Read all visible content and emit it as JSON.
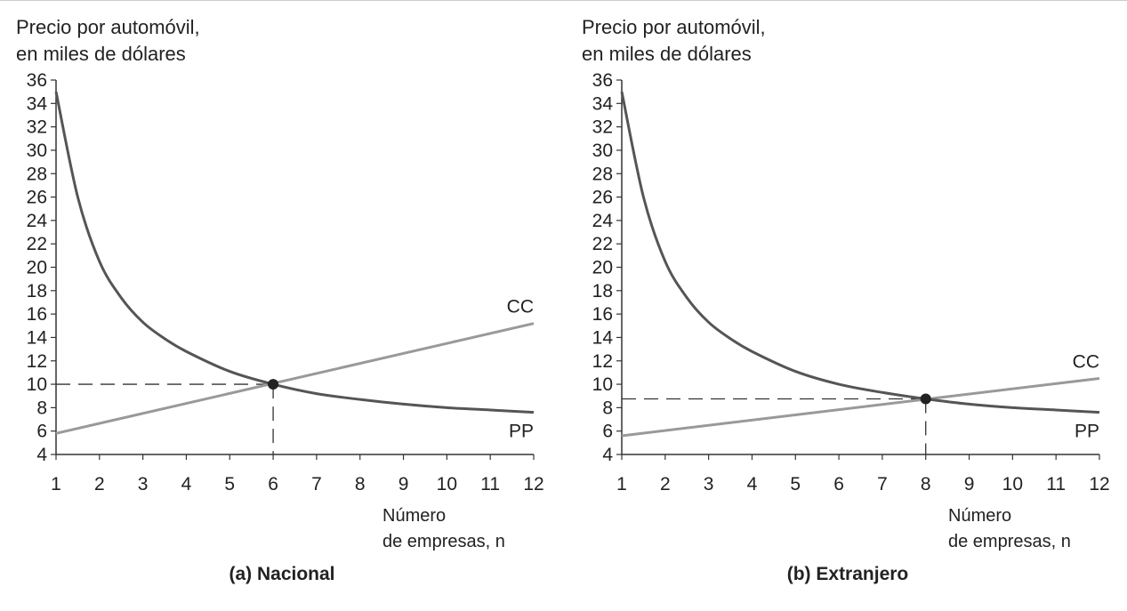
{
  "chart_data": [
    {
      "type": "line",
      "caption": "(a) Nacional",
      "ylabel_line1": "Precio por automóvil,",
      "ylabel_line2": "en miles de dólares",
      "xlabel_line1": "Número",
      "xlabel_line2": "de empresas, n",
      "xlim": [
        1,
        12
      ],
      "ylim": [
        4,
        36
      ],
      "x_ticks": [
        1,
        2,
        3,
        4,
        5,
        6,
        7,
        8,
        9,
        10,
        11,
        12
      ],
      "y_ticks": [
        4,
        6,
        8,
        10,
        12,
        14,
        16,
        18,
        20,
        22,
        24,
        26,
        28,
        30,
        32,
        34,
        36
      ],
      "series": [
        {
          "name": "CC",
          "color": "#999999",
          "x": [
            1,
            12
          ],
          "y": [
            5.8,
            15.2
          ]
        },
        {
          "name": "PP",
          "color": "#555555",
          "x": [
            1,
            1.5,
            2,
            2.5,
            3,
            3.5,
            4,
            5,
            6,
            7,
            8,
            9,
            10,
            11,
            12
          ],
          "y": [
            35,
            26,
            20.5,
            17.4,
            15.3,
            13.9,
            12.8,
            11.1,
            10,
            9.2,
            8.7,
            8.3,
            8.0,
            7.8,
            7.6
          ]
        }
      ],
      "equilibrium": {
        "x": 6,
        "y": 10
      }
    },
    {
      "type": "line",
      "caption": "(b) Extranjero",
      "ylabel_line1": "Precio por automóvil,",
      "ylabel_line2": "en miles de dólares",
      "xlabel_line1": "Número",
      "xlabel_line2": "de empresas, n",
      "xlim": [
        1,
        12
      ],
      "ylim": [
        4,
        36
      ],
      "x_ticks": [
        1,
        2,
        3,
        4,
        5,
        6,
        7,
        8,
        9,
        10,
        11,
        12
      ],
      "y_ticks": [
        4,
        6,
        8,
        10,
        12,
        14,
        16,
        18,
        20,
        22,
        24,
        26,
        28,
        30,
        32,
        34,
        36
      ],
      "series": [
        {
          "name": "CC",
          "color": "#999999",
          "x": [
            1,
            12
          ],
          "y": [
            5.6,
            10.5
          ]
        },
        {
          "name": "PP",
          "color": "#555555",
          "x": [
            1,
            1.5,
            2,
            2.5,
            3,
            3.5,
            4,
            5,
            6,
            7,
            8,
            9,
            10,
            11,
            12
          ],
          "y": [
            35,
            26,
            20.5,
            17.4,
            15.3,
            13.9,
            12.8,
            11.1,
            10,
            9.3,
            8.75,
            8.3,
            8.0,
            7.8,
            7.6
          ]
        }
      ],
      "equilibrium": {
        "x": 8,
        "y": 8.75
      }
    }
  ]
}
